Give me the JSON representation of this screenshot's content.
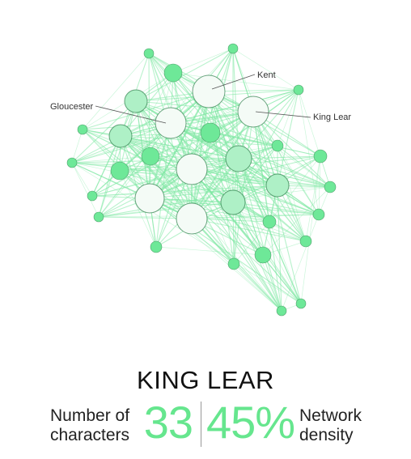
{
  "title": "KING LEAR",
  "stats": {
    "characters_count": "33",
    "characters_label": [
      "Number of",
      "characters"
    ],
    "density_value": "45%",
    "density_label": [
      "Network",
      "density"
    ]
  },
  "colors": {
    "edge": "#7ee8a2",
    "node_stroke": "#2f7f4c",
    "dark_node": "#66e68e",
    "accent_text": "#66e68e"
  },
  "network": {
    "labels": [
      "Kent",
      "Gloucester",
      "King Lear"
    ]
  }
}
